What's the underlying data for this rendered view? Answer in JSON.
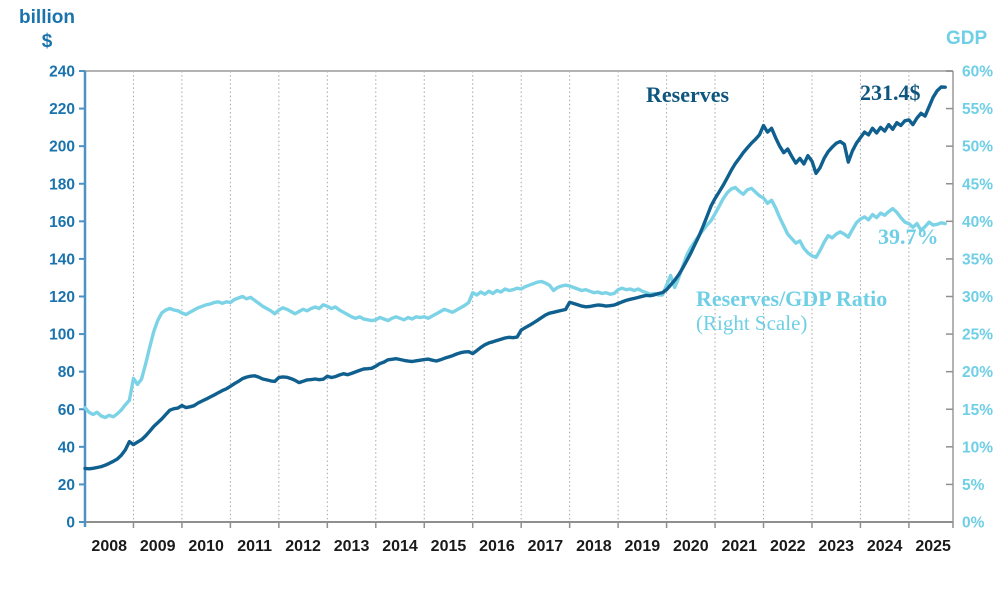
{
  "axes": {
    "left_title_line1": "billion",
    "left_title_line2": "$",
    "right_title": "GDP"
  },
  "annotations": {
    "reserves_label": "Reserves",
    "reserves_value": "231.4$",
    "ratio_label": "Reserves/GDP Ratio",
    "ratio_sublabel": "(Right Scale)",
    "ratio_value": "39.7%"
  },
  "colors": {
    "dark_line": "#10608F",
    "dark_text": "#0E567F",
    "cyan_line": "#7CD3E6",
    "cyan_text": "#6FCFE5",
    "left_tick_text": "#1A73AD",
    "left_axis": "#4C92C3",
    "x_tick_text": "#1A1A1A",
    "grid": "#A6A6A6",
    "border_top": "#B3B3B3",
    "border_right": "#9A9A9A",
    "border_bottom": "#8F8F8F"
  },
  "chart_data": {
    "type": "line",
    "title": "",
    "x_frequency": "monthly",
    "x_start": "2008-01",
    "x_end": "2025-10",
    "x_tick_labels": [
      "2008",
      "2009",
      "2010",
      "2011",
      "2012",
      "2013",
      "2014",
      "2015",
      "2016",
      "2017",
      "2018",
      "2019",
      "2020",
      "2021",
      "2022",
      "2023",
      "2024",
      "2025"
    ],
    "grid": "vertical-dashed-at-year-boundaries",
    "legend_position": "inline-text-annotations",
    "left_axis": {
      "title": "billion $",
      "min": 0,
      "max": 240,
      "step": 20,
      "labels": [
        "0",
        "20",
        "40",
        "60",
        "80",
        "100",
        "120",
        "140",
        "160",
        "180",
        "200",
        "220",
        "240"
      ]
    },
    "right_axis": {
      "title": "GDP",
      "min": 0,
      "max": 60,
      "step": 5,
      "labels": [
        "0%",
        "5%",
        "10%",
        "15%",
        "20%",
        "25%",
        "30%",
        "35%",
        "40%",
        "45%",
        "50%",
        "55%",
        "60%"
      ]
    },
    "series": [
      {
        "name": "Reserves",
        "axis": "left",
        "color": "#7CD3E6-OVERRIDDEN-BY-INDEX",
        "latest_label": "231.4$",
        "values": [
          28.5,
          28.3,
          28.6,
          29.0,
          29.5,
          30.2,
          31.2,
          32.3,
          33.5,
          35.5,
          38.5,
          42.8,
          41.2,
          42.5,
          43.8,
          45.8,
          48.2,
          50.8,
          52.8,
          54.8,
          57.2,
          59.5,
          60.3,
          60.6,
          62.0,
          60.9,
          61.3,
          61.9,
          63.3,
          64.4,
          65.4,
          66.5,
          67.6,
          68.8,
          69.9,
          70.9,
          72.2,
          73.6,
          74.9,
          76.3,
          77.1,
          77.6,
          77.8,
          77.1,
          76.1,
          75.6,
          75.1,
          74.8,
          76.9,
          77.2,
          77.0,
          76.3,
          75.4,
          74.2,
          74.9,
          75.6,
          75.8,
          76.1,
          75.7,
          76.0,
          77.6,
          76.9,
          77.4,
          78.2,
          78.9,
          78.4,
          79.1,
          79.9,
          80.7,
          81.4,
          81.6,
          81.8,
          82.9,
          84.3,
          85.1,
          86.3,
          86.6,
          86.9,
          86.5,
          86.0,
          85.6,
          85.4,
          85.8,
          86.1,
          86.4,
          86.7,
          86.1,
          85.7,
          86.3,
          87.1,
          87.8,
          88.5,
          89.4,
          90.1,
          90.5,
          90.6,
          89.6,
          91.2,
          92.9,
          94.3,
          95.3,
          95.9,
          96.6,
          97.3,
          97.9,
          98.3,
          98.1,
          98.4,
          102.1,
          103.4,
          104.6,
          105.9,
          107.3,
          108.7,
          110.1,
          111.1,
          111.6,
          112.1,
          112.6,
          113.1,
          116.9,
          116.3,
          115.6,
          114.9,
          114.5,
          114.7,
          115.1,
          115.5,
          115.3,
          114.9,
          115.1,
          115.4,
          116.3,
          117.1,
          117.9,
          118.5,
          119.0,
          119.5,
          120.1,
          120.6,
          120.4,
          120.9,
          121.6,
          122.1,
          123.6,
          126.1,
          128.6,
          131.6,
          135.1,
          139.1,
          143.1,
          147.6,
          152.1,
          157.1,
          162.6,
          168.1,
          172.1,
          175.6,
          179.1,
          183.1,
          187.1,
          190.6,
          193.6,
          196.6,
          199.1,
          201.6,
          203.6,
          206.1,
          211.0,
          207.5,
          209.5,
          204.5,
          200.0,
          196.5,
          198.5,
          194.5,
          191.0,
          193.5,
          190.5,
          195.0,
          192.0,
          185.5,
          188.5,
          193.5,
          197.0,
          199.5,
          201.5,
          202.5,
          201.0,
          191.5,
          197.5,
          201.5,
          204.5,
          207.5,
          206.0,
          209.5,
          207.0,
          210.0,
          208.0,
          211.5,
          209.0,
          212.5,
          211.0,
          213.5,
          214.0,
          211.5,
          215.0,
          217.5,
          216.0,
          221.0,
          226.0,
          229.5,
          231.5,
          231.4
        ]
      },
      {
        "name": "Reserves/GDP Ratio (Right Scale)",
        "axis": "right",
        "color": "#7CD3E6",
        "latest_label": "39.7%",
        "values": [
          15.2,
          14.6,
          14.3,
          14.6,
          14.1,
          13.9,
          14.2,
          14.0,
          14.4,
          14.9,
          15.6,
          16.2,
          19.1,
          18.3,
          19.0,
          21.0,
          23.2,
          25.3,
          26.8,
          27.8,
          28.2,
          28.4,
          28.2,
          28.1,
          27.8,
          27.6,
          27.9,
          28.2,
          28.5,
          28.7,
          28.9,
          29.0,
          29.2,
          29.3,
          29.1,
          29.3,
          29.2,
          29.6,
          29.8,
          30.0,
          29.7,
          29.9,
          29.5,
          29.1,
          28.7,
          28.4,
          28.1,
          27.7,
          28.2,
          28.5,
          28.3,
          28.0,
          27.7,
          28.0,
          28.3,
          28.1,
          28.4,
          28.6,
          28.4,
          28.9,
          28.7,
          28.4,
          28.6,
          28.2,
          27.9,
          27.6,
          27.3,
          27.1,
          27.3,
          27.0,
          26.9,
          26.8,
          26.9,
          27.2,
          27.0,
          26.8,
          27.1,
          27.3,
          27.1,
          26.9,
          27.2,
          27.0,
          27.3,
          27.2,
          27.3,
          27.1,
          27.4,
          27.7,
          28.0,
          28.3,
          28.1,
          27.9,
          28.2,
          28.5,
          28.8,
          29.2,
          30.5,
          30.2,
          30.6,
          30.3,
          30.7,
          30.4,
          30.8,
          30.6,
          31.0,
          30.8,
          30.9,
          31.1,
          31.0,
          31.3,
          31.5,
          31.7,
          31.9,
          32.0,
          31.8,
          31.5,
          30.8,
          31.2,
          31.4,
          31.5,
          31.4,
          31.2,
          31.0,
          30.8,
          30.9,
          30.7,
          30.5,
          30.6,
          30.4,
          30.5,
          30.3,
          30.4,
          30.9,
          31.1,
          30.9,
          31.0,
          30.8,
          31.0,
          30.7,
          30.5,
          30.3,
          30.4,
          30.2,
          30.2,
          31.5,
          32.8,
          31.2,
          32.5,
          34.0,
          35.5,
          36.5,
          37.3,
          38.1,
          38.8,
          39.5,
          40.1,
          41.0,
          42.0,
          43.0,
          43.8,
          44.3,
          44.5,
          44.0,
          43.6,
          44.2,
          44.4,
          43.9,
          43.4,
          43.1,
          42.4,
          42.8,
          41.8,
          40.5,
          39.4,
          38.3,
          37.7,
          37.1,
          37.4,
          36.4,
          35.8,
          35.4,
          35.2,
          36.1,
          37.2,
          38.1,
          37.8,
          38.3,
          38.6,
          38.3,
          37.9,
          38.9,
          39.8,
          40.3,
          40.6,
          40.2,
          40.9,
          40.5,
          41.1,
          40.8,
          41.3,
          41.7,
          41.2,
          40.5,
          39.9,
          39.7,
          39.2,
          39.7,
          38.8,
          39.3,
          39.9,
          39.5,
          39.6,
          39.8,
          39.7
        ]
      }
    ]
  }
}
